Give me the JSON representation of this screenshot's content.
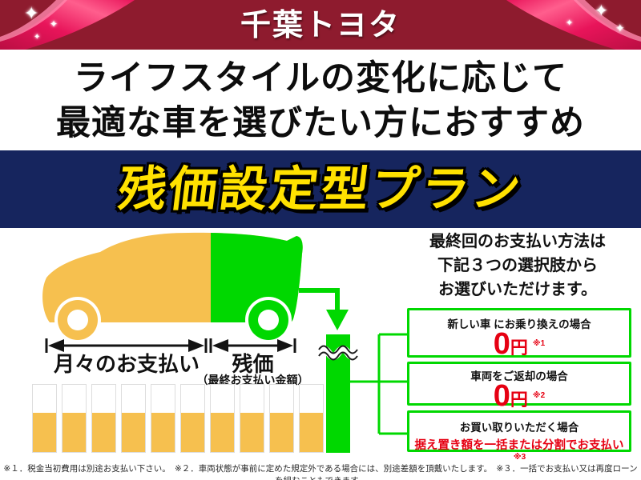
{
  "colors": {
    "header-bg": "#8E1B2E",
    "ribbon-pink": "#E8145A",
    "ribbon-pink-light": "#FF6E99",
    "banner-bg": "#16255E",
    "banner-text": "#FFE100",
    "orange": "#F6C04F",
    "green": "#00D800",
    "red": "#E60012",
    "bar-border": "#DDDDDD"
  },
  "header": {
    "logo": "千葉トヨタ",
    "sparkle_glyph": "✦"
  },
  "headline": {
    "line1": "ライフスタイルの変化に応じて",
    "line2": "最適な車を選びたい方におすすめ"
  },
  "banner": {
    "title": "残価設定型プラン"
  },
  "diagram": {
    "monthly_label": "月々のお支払い",
    "residual_label": "残価",
    "residual_sub": "（最終お支払い金額）",
    "bars": {
      "count": 10,
      "fill_percent": 58
    }
  },
  "options": {
    "intro_line1": "最終回のお支払い方法は",
    "intro_line2": "下記３つの選択肢から",
    "intro_line3": "お選びいただけます。",
    "boxes": [
      {
        "condition": "新しい車 にお乗り換えの場合",
        "amount": "0",
        "unit": "円",
        "note_ref": "※1"
      },
      {
        "condition": "車両をご返却の場合",
        "amount": "0",
        "unit": "円",
        "note_ref": "※2"
      },
      {
        "condition": "お買い取りいただく場合",
        "detail": "据え置き額を一括または分割でお支払い",
        "note_ref": "※3"
      }
    ]
  },
  "footnotes": {
    "text": "※１．税金当初費用は別途お支払い下さい。　※２．車両状態が事前に定めた規定外である場合には、別途差額を頂戴いたします。　※３．一括でお支払い又は再度ローンを組むこともできます。"
  }
}
